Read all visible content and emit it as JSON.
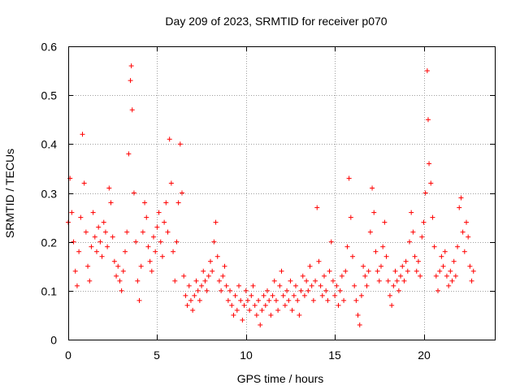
{
  "chart_data": {
    "type": "scatter",
    "title": "Day 209 of 2023, SRMTID for receiver p070",
    "xlabel": "GPS time / hours",
    "ylabel": "SRMTID / TECUs",
    "xlim": [
      0,
      24
    ],
    "ylim": [
      0,
      0.6
    ],
    "xticks": [
      0,
      5,
      10,
      15,
      20
    ],
    "xtick_labels": [
      "0",
      "5",
      "10",
      "15",
      "20"
    ],
    "yticks": [
      0,
      0.1,
      0.2,
      0.3,
      0.4,
      0.5,
      0.6
    ],
    "ytick_labels": [
      "0",
      "0.1",
      "0.2",
      "0.3",
      "0.4",
      "0.5",
      "0.6"
    ],
    "grid": true,
    "marker": "+",
    "color": "#ff0000",
    "series": [
      {
        "name": "SRMTID",
        "points": [
          [
            0.0,
            0.24
          ],
          [
            0.1,
            0.33
          ],
          [
            0.2,
            0.26
          ],
          [
            0.3,
            0.2
          ],
          [
            0.4,
            0.14
          ],
          [
            0.5,
            0.11
          ],
          [
            0.6,
            0.18
          ],
          [
            0.7,
            0.25
          ],
          [
            0.8,
            0.42
          ],
          [
            0.9,
            0.32
          ],
          [
            1.0,
            0.22
          ],
          [
            1.1,
            0.15
          ],
          [
            1.2,
            0.12
          ],
          [
            1.3,
            0.19
          ],
          [
            1.4,
            0.26
          ],
          [
            1.5,
            0.21
          ],
          [
            1.6,
            0.18
          ],
          [
            1.7,
            0.23
          ],
          [
            1.8,
            0.2
          ],
          [
            1.9,
            0.17
          ],
          [
            2.0,
            0.24
          ],
          [
            2.1,
            0.22
          ],
          [
            2.2,
            0.19
          ],
          [
            2.3,
            0.31
          ],
          [
            2.4,
            0.28
          ],
          [
            2.5,
            0.21
          ],
          [
            2.6,
            0.16
          ],
          [
            2.7,
            0.13
          ],
          [
            2.8,
            0.15
          ],
          [
            2.9,
            0.12
          ],
          [
            3.0,
            0.1
          ],
          [
            3.1,
            0.14
          ],
          [
            3.2,
            0.18
          ],
          [
            3.3,
            0.22
          ],
          [
            3.4,
            0.38
          ],
          [
            3.5,
            0.53
          ],
          [
            3.55,
            0.56
          ],
          [
            3.6,
            0.47
          ],
          [
            3.7,
            0.3
          ],
          [
            3.8,
            0.2
          ],
          [
            3.9,
            0.12
          ],
          [
            4.0,
            0.08
          ],
          [
            4.1,
            0.15
          ],
          [
            4.2,
            0.22
          ],
          [
            4.3,
            0.28
          ],
          [
            4.4,
            0.25
          ],
          [
            4.5,
            0.19
          ],
          [
            4.6,
            0.16
          ],
          [
            4.7,
            0.14
          ],
          [
            4.8,
            0.21
          ],
          [
            4.9,
            0.18
          ],
          [
            5.0,
            0.23
          ],
          [
            5.1,
            0.26
          ],
          [
            5.2,
            0.2
          ],
          [
            5.3,
            0.17
          ],
          [
            5.4,
            0.24
          ],
          [
            5.5,
            0.28
          ],
          [
            5.6,
            0.22
          ],
          [
            5.7,
            0.41
          ],
          [
            5.8,
            0.32
          ],
          [
            5.9,
            0.18
          ],
          [
            6.0,
            0.12
          ],
          [
            6.1,
            0.2
          ],
          [
            6.2,
            0.28
          ],
          [
            6.3,
            0.4
          ],
          [
            6.4,
            0.3
          ],
          [
            6.5,
            0.13
          ],
          [
            6.6,
            0.09
          ],
          [
            6.7,
            0.07
          ],
          [
            6.8,
            0.11
          ],
          [
            6.9,
            0.08
          ],
          [
            7.0,
            0.06
          ],
          [
            7.1,
            0.09
          ],
          [
            7.2,
            0.12
          ],
          [
            7.3,
            0.1
          ],
          [
            7.4,
            0.08
          ],
          [
            7.5,
            0.11
          ],
          [
            7.6,
            0.14
          ],
          [
            7.7,
            0.12
          ],
          [
            7.8,
            0.1
          ],
          [
            7.9,
            0.13
          ],
          [
            8.0,
            0.16
          ],
          [
            8.1,
            0.14
          ],
          [
            8.2,
            0.2
          ],
          [
            8.3,
            0.24
          ],
          [
            8.4,
            0.17
          ],
          [
            8.5,
            0.12
          ],
          [
            8.6,
            0.1
          ],
          [
            8.7,
            0.13
          ],
          [
            8.8,
            0.15
          ],
          [
            8.9,
            0.11
          ],
          [
            9.0,
            0.08
          ],
          [
            9.1,
            0.1
          ],
          [
            9.2,
            0.07
          ],
          [
            9.3,
            0.05
          ],
          [
            9.4,
            0.09
          ],
          [
            9.5,
            0.06
          ],
          [
            9.6,
            0.11
          ],
          [
            9.7,
            0.08
          ],
          [
            9.8,
            0.04
          ],
          [
            9.9,
            0.07
          ],
          [
            10.0,
            0.1
          ],
          [
            10.1,
            0.08
          ],
          [
            10.2,
            0.06
          ],
          [
            10.3,
            0.09
          ],
          [
            10.4,
            0.11
          ],
          [
            10.5,
            0.07
          ],
          [
            10.6,
            0.05
          ],
          [
            10.7,
            0.08
          ],
          [
            10.8,
            0.03
          ],
          [
            10.9,
            0.06
          ],
          [
            11.0,
            0.09
          ],
          [
            11.1,
            0.07
          ],
          [
            11.2,
            0.1
          ],
          [
            11.3,
            0.08
          ],
          [
            11.4,
            0.05
          ],
          [
            11.5,
            0.09
          ],
          [
            11.6,
            0.12
          ],
          [
            11.7,
            0.08
          ],
          [
            11.8,
            0.06
          ],
          [
            11.9,
            0.11
          ],
          [
            12.0,
            0.14
          ],
          [
            12.1,
            0.09
          ],
          [
            12.2,
            0.07
          ],
          [
            12.3,
            0.1
          ],
          [
            12.4,
            0.08
          ],
          [
            12.5,
            0.12
          ],
          [
            12.6,
            0.06
          ],
          [
            12.7,
            0.09
          ],
          [
            12.8,
            0.11
          ],
          [
            12.9,
            0.08
          ],
          [
            13.0,
            0.05
          ],
          [
            13.1,
            0.1
          ],
          [
            13.2,
            0.13
          ],
          [
            13.3,
            0.09
          ],
          [
            13.4,
            0.12
          ],
          [
            13.5,
            0.1
          ],
          [
            13.6,
            0.15
          ],
          [
            13.7,
            0.11
          ],
          [
            13.8,
            0.08
          ],
          [
            13.9,
            0.12
          ],
          [
            14.0,
            0.27
          ],
          [
            14.1,
            0.16
          ],
          [
            14.2,
            0.11
          ],
          [
            14.3,
            0.09
          ],
          [
            14.4,
            0.13
          ],
          [
            14.5,
            0.1
          ],
          [
            14.6,
            0.08
          ],
          [
            14.7,
            0.14
          ],
          [
            14.8,
            0.2
          ],
          [
            14.9,
            0.12
          ],
          [
            15.0,
            0.09
          ],
          [
            15.1,
            0.11
          ],
          [
            15.2,
            0.07
          ],
          [
            15.3,
            0.1
          ],
          [
            15.4,
            0.13
          ],
          [
            15.5,
            0.08
          ],
          [
            15.6,
            0.14
          ],
          [
            15.7,
            0.19
          ],
          [
            15.8,
            0.33
          ],
          [
            15.9,
            0.25
          ],
          [
            16.0,
            0.17
          ],
          [
            16.1,
            0.11
          ],
          [
            16.2,
            0.08
          ],
          [
            16.3,
            0.05
          ],
          [
            16.4,
            0.03
          ],
          [
            16.5,
            0.09
          ],
          [
            16.6,
            0.15
          ],
          [
            16.7,
            0.13
          ],
          [
            16.8,
            0.11
          ],
          [
            16.9,
            0.14
          ],
          [
            17.0,
            0.22
          ],
          [
            17.1,
            0.31
          ],
          [
            17.2,
            0.26
          ],
          [
            17.3,
            0.18
          ],
          [
            17.4,
            0.14
          ],
          [
            17.5,
            0.12
          ],
          [
            17.6,
            0.15
          ],
          [
            17.7,
            0.19
          ],
          [
            17.8,
            0.24
          ],
          [
            17.9,
            0.17
          ],
          [
            18.0,
            0.12
          ],
          [
            18.1,
            0.09
          ],
          [
            18.2,
            0.07
          ],
          [
            18.3,
            0.11
          ],
          [
            18.4,
            0.14
          ],
          [
            18.5,
            0.12
          ],
          [
            18.6,
            0.1
          ],
          [
            18.7,
            0.13
          ],
          [
            18.8,
            0.15
          ],
          [
            18.9,
            0.12
          ],
          [
            19.0,
            0.16
          ],
          [
            19.1,
            0.14
          ],
          [
            19.2,
            0.2
          ],
          [
            19.3,
            0.26
          ],
          [
            19.4,
            0.22
          ],
          [
            19.5,
            0.17
          ],
          [
            19.6,
            0.14
          ],
          [
            19.7,
            0.16
          ],
          [
            19.8,
            0.13
          ],
          [
            19.9,
            0.21
          ],
          [
            20.0,
            0.24
          ],
          [
            20.1,
            0.3
          ],
          [
            20.2,
            0.55
          ],
          [
            20.25,
            0.45
          ],
          [
            20.3,
            0.36
          ],
          [
            20.4,
            0.32
          ],
          [
            20.5,
            0.25
          ],
          [
            20.6,
            0.19
          ],
          [
            20.7,
            0.13
          ],
          [
            20.8,
            0.1
          ],
          [
            20.9,
            0.14
          ],
          [
            21.0,
            0.17
          ],
          [
            21.1,
            0.15
          ],
          [
            21.2,
            0.18
          ],
          [
            21.3,
            0.13
          ],
          [
            21.4,
            0.11
          ],
          [
            21.5,
            0.14
          ],
          [
            21.6,
            0.12
          ],
          [
            21.7,
            0.16
          ],
          [
            21.8,
            0.13
          ],
          [
            21.9,
            0.19
          ],
          [
            22.0,
            0.27
          ],
          [
            22.1,
            0.29
          ],
          [
            22.2,
            0.22
          ],
          [
            22.3,
            0.18
          ],
          [
            22.4,
            0.24
          ],
          [
            22.5,
            0.21
          ],
          [
            22.6,
            0.15
          ],
          [
            22.7,
            0.12
          ],
          [
            22.8,
            0.14
          ]
        ]
      }
    ]
  }
}
